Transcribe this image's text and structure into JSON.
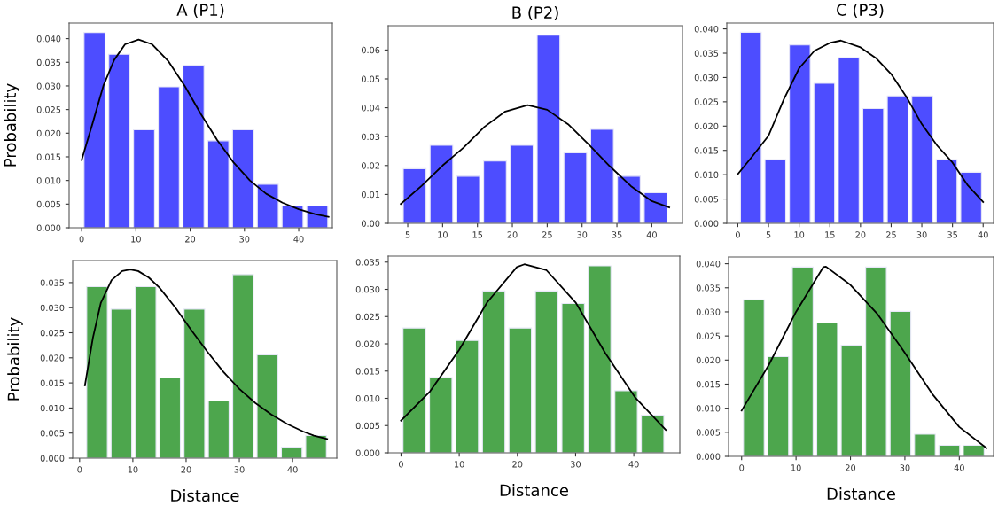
{
  "chart_data": [
    {
      "type": "histogram",
      "title": "A (P1)",
      "ylabel": "Probability",
      "xlim": [
        -2.3,
        46.2
      ],
      "ylim": [
        0,
        0.0433
      ],
      "xticks": [
        0,
        10,
        20,
        30,
        40
      ],
      "yticks": [
        {
          "value": 0,
          "label": "0.000"
        },
        {
          "value": 0.005,
          "label": "0.005"
        },
        {
          "value": 0.01,
          "label": "0.010"
        },
        {
          "value": 0.015,
          "label": "0.015"
        },
        {
          "value": 0.02,
          "label": "0.020"
        },
        {
          "value": 0.025,
          "label": "0.025"
        },
        {
          "value": 0.03,
          "label": "0.030"
        },
        {
          "value": 0.035,
          "label": "0.035"
        },
        {
          "value": 0.04,
          "label": "0.040"
        }
      ],
      "grid": false,
      "series": [
        {
          "type": "histogram",
          "color": "#4d4dff",
          "bins": [
            0.1,
            4.66,
            9.22,
            13.78,
            18.34,
            22.9,
            27.46,
            32.02,
            36.58,
            41.14,
            45.7
          ],
          "values": [
            0.0413,
            0.0367,
            0.0207,
            0.0298,
            0.0344,
            0.0184,
            0.0207,
            0.0092,
            0.0046,
            0.0046
          ]
        },
        {
          "type": "line",
          "color": "#000000",
          "x": [
            0,
            2,
            4,
            6,
            8,
            10.5,
            13,
            16,
            19,
            22,
            25,
            28,
            31,
            34,
            37,
            40,
            43,
            45.5
          ],
          "values": [
            0.0143,
            0.022,
            0.03,
            0.0355,
            0.0388,
            0.0398,
            0.0388,
            0.0352,
            0.03,
            0.024,
            0.0185,
            0.0138,
            0.01,
            0.0072,
            0.0053,
            0.0039,
            0.0029,
            0.0023
          ]
        }
      ]
    },
    {
      "type": "histogram",
      "title": "B (P2)",
      "xlim": [
        2.2,
        44.4
      ],
      "ylim": [
        0,
        0.0684
      ],
      "xticks": [
        5,
        10,
        15,
        20,
        25,
        30,
        35,
        40
      ],
      "yticks": [
        {
          "value": 0,
          "label": "0.00"
        },
        {
          "value": 0.01,
          "label": "0.01"
        },
        {
          "value": 0.02,
          "label": "0.02"
        },
        {
          "value": 0.03,
          "label": "0.03"
        },
        {
          "value": 0.04,
          "label": "0.04"
        },
        {
          "value": 0.05,
          "label": "0.05"
        },
        {
          "value": 0.06,
          "label": "0.06"
        }
      ],
      "grid": false,
      "series": [
        {
          "type": "histogram",
          "color": "#4d4dff",
          "bins": [
            4.07,
            7.91,
            11.75,
            15.59,
            19.43,
            23.27,
            27.11,
            30.95,
            34.79,
            38.63,
            42.47
          ],
          "values": [
            0.0189,
            0.027,
            0.0163,
            0.0216,
            0.027,
            0.0651,
            0.0244,
            0.0325,
            0.0163,
            0.0106
          ]
        },
        {
          "type": "line",
          "color": "#000000",
          "x": [
            4,
            7,
            10,
            13,
            16,
            19,
            22.2,
            25,
            28,
            31,
            34,
            37,
            40,
            42.5
          ],
          "values": [
            0.0067,
            0.013,
            0.02,
            0.0262,
            0.0334,
            0.0387,
            0.0409,
            0.0393,
            0.0343,
            0.0272,
            0.0197,
            0.0129,
            0.0077,
            0.0055
          ]
        }
      ]
    },
    {
      "type": "histogram",
      "title": "C (P3)",
      "xlim": [
        -1.8,
        41.7
      ],
      "ylim": [
        0,
        0.0412
      ],
      "xticks": [
        0,
        5,
        10,
        15,
        20,
        25,
        30,
        35,
        40
      ],
      "yticks": [
        {
          "value": 0,
          "label": "0.000"
        },
        {
          "value": 0.005,
          "label": "0.005"
        },
        {
          "value": 0.01,
          "label": "0.010"
        },
        {
          "value": 0.015,
          "label": "0.015"
        },
        {
          "value": 0.02,
          "label": "0.020"
        },
        {
          "value": 0.025,
          "label": "0.025"
        },
        {
          "value": 0.03,
          "label": "0.030"
        },
        {
          "value": 0.035,
          "label": "0.035"
        },
        {
          "value": 0.04,
          "label": "0.040"
        }
      ],
      "grid": false,
      "series": [
        {
          "type": "histogram",
          "color": "#4d4dff",
          "bins": [
            0.13,
            4.12,
            8.11,
            12.1,
            16.09,
            20.08,
            24.07,
            28.06,
            32.05,
            36.04,
            40.03
          ],
          "values": [
            0.0393,
            0.0131,
            0.0367,
            0.0288,
            0.0341,
            0.0236,
            0.0262,
            0.0262,
            0.0131,
            0.0105
          ]
        },
        {
          "type": "line",
          "color": "#000000",
          "x": [
            0,
            2.5,
            5,
            7.5,
            10,
            12.5,
            15,
            16.8,
            20,
            22.5,
            25,
            27.5,
            30,
            32.5,
            35,
            37.5,
            40
          ],
          "values": [
            0.0101,
            0.014,
            0.018,
            0.0255,
            0.0319,
            0.0355,
            0.0371,
            0.0376,
            0.0362,
            0.034,
            0.0307,
            0.026,
            0.0204,
            0.016,
            0.0125,
            0.0078,
            0.0044
          ]
        }
      ]
    },
    {
      "type": "histogram",
      "ylabel": "Probability",
      "xlabel": "Distance",
      "xlim": [
        -1.3,
        48.3
      ],
      "ylim": [
        0,
        0.0394
      ],
      "xticks": [
        0,
        10,
        20,
        30,
        40
      ],
      "yticks": [
        {
          "value": 0,
          "label": "0.000"
        },
        {
          "value": 0.005,
          "label": "0.005"
        },
        {
          "value": 0.01,
          "label": "0.010"
        },
        {
          "value": 0.015,
          "label": "0.015"
        },
        {
          "value": 0.02,
          "label": "0.020"
        },
        {
          "value": 0.025,
          "label": "0.025"
        },
        {
          "value": 0.03,
          "label": "0.030"
        },
        {
          "value": 0.035,
          "label": "0.035"
        }
      ],
      "grid": false,
      "series": [
        {
          "type": "histogram",
          "color": "#4da64d",
          "bins": [
            0.99,
            5.56,
            10.13,
            14.7,
            19.27,
            23.84,
            28.41,
            32.98,
            37.55,
            42.12,
            46.69
          ],
          "values": [
            0.0342,
            0.0297,
            0.0342,
            0.016,
            0.0297,
            0.0114,
            0.0366,
            0.0206,
            0.0022,
            0.0045
          ]
        },
        {
          "type": "line",
          "color": "#000000",
          "x": [
            1,
            2.5,
            4,
            6,
            8,
            9.5,
            11,
            13,
            15,
            18,
            21,
            24,
            27,
            30,
            33,
            36,
            39,
            42,
            44,
            46.5
          ],
          "values": [
            0.0145,
            0.024,
            0.031,
            0.0355,
            0.0373,
            0.0376,
            0.0373,
            0.036,
            0.034,
            0.03,
            0.0255,
            0.0212,
            0.0172,
            0.0138,
            0.011,
            0.0087,
            0.0068,
            0.0053,
            0.0045,
            0.0038
          ]
        }
      ]
    },
    {
      "type": "histogram",
      "xlabel": "Distance",
      "xlim": [
        -2.2,
        47.9
      ],
      "ylim": [
        0,
        0.0361
      ],
      "xticks": [
        0,
        10,
        20,
        30,
        40
      ],
      "yticks": [
        {
          "value": 0,
          "label": "0.000"
        },
        {
          "value": 0.005,
          "label": "0.005"
        },
        {
          "value": 0.01,
          "label": "0.010"
        },
        {
          "value": 0.015,
          "label": "0.015"
        },
        {
          "value": 0.02,
          "label": "0.020"
        },
        {
          "value": 0.025,
          "label": "0.025"
        },
        {
          "value": 0.03,
          "label": "0.030"
        },
        {
          "value": 0.035,
          "label": "0.035"
        }
      ],
      "grid": false,
      "series": [
        {
          "type": "histogram",
          "color": "#4da64d",
          "bins": [
            0,
            4.55,
            9.1,
            13.65,
            18.2,
            22.75,
            27.3,
            31.85,
            36.4,
            40.95,
            45.5
          ],
          "values": [
            0.0229,
            0.0138,
            0.0206,
            0.0297,
            0.0229,
            0.0297,
            0.0274,
            0.0343,
            0.0114,
            0.0069
          ]
        },
        {
          "type": "line",
          "color": "#000000",
          "x": [
            0,
            5,
            10,
            14.8,
            19.9,
            21.2,
            25,
            30,
            35.1,
            40.2,
            45.5
          ],
          "values": [
            0.0059,
            0.0113,
            0.0189,
            0.0276,
            0.0341,
            0.0346,
            0.0335,
            0.0276,
            0.0183,
            0.0102,
            0.0042
          ]
        }
      ]
    },
    {
      "type": "histogram",
      "xlabel": "Distance",
      "xlim": [
        -2.4,
        46.3
      ],
      "ylim": [
        0,
        0.0414
      ],
      "xticks": [
        0,
        10,
        20,
        30,
        40
      ],
      "yticks": [
        {
          "value": 0,
          "label": "0.000"
        },
        {
          "value": 0.005,
          "label": "0.005"
        },
        {
          "value": 0.01,
          "label": "0.010"
        },
        {
          "value": 0.015,
          "label": "0.015"
        },
        {
          "value": 0.02,
          "label": "0.020"
        },
        {
          "value": 0.025,
          "label": "0.025"
        },
        {
          "value": 0.03,
          "label": "0.030"
        },
        {
          "value": 0.035,
          "label": "0.035"
        },
        {
          "value": 0.04,
          "label": "0.040"
        }
      ],
      "grid": false,
      "series": [
        {
          "type": "histogram",
          "color": "#4da64d",
          "bins": [
            0,
            4.49,
            8.98,
            13.47,
            17.96,
            22.45,
            26.94,
            31.43,
            35.92,
            40.41,
            44.9
          ],
          "values": [
            0.0325,
            0.0207,
            0.0393,
            0.0277,
            0.0231,
            0.0393,
            0.0301,
            0.0046,
            0.0023,
            0.0023
          ]
        },
        {
          "type": "line",
          "color": "#000000",
          "x": [
            0,
            5,
            10,
            15,
            15.5,
            20,
            25,
            30,
            35,
            40,
            45
          ],
          "values": [
            0.0095,
            0.019,
            0.03,
            0.0393,
            0.0394,
            0.0356,
            0.0295,
            0.0215,
            0.013,
            0.0061,
            0.0017
          ]
        }
      ]
    }
  ]
}
